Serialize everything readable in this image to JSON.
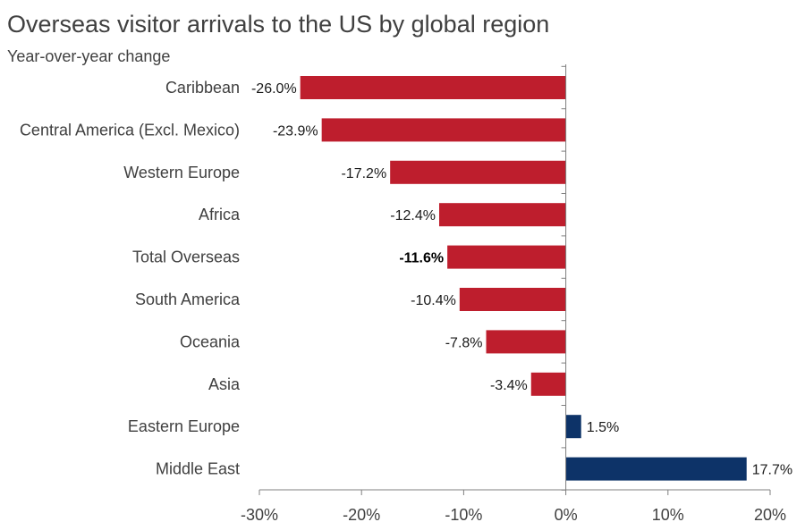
{
  "header": {
    "title": "Overseas visitor arrivals to the US by global region",
    "subtitle": "Year-over-year change"
  },
  "chart_data": {
    "type": "bar",
    "orientation": "horizontal",
    "title": "Overseas visitor arrivals to the US by global region",
    "subtitle": "Year-over-year change",
    "xlabel": "",
    "ylabel": "",
    "xlim": [
      -30,
      20
    ],
    "x_ticks": [
      -30,
      -20,
      -10,
      0,
      10,
      20
    ],
    "x_tick_labels": [
      "-30%",
      "-20%",
      "-10%",
      "0%",
      "10%",
      "20%"
    ],
    "categories": [
      "Caribbean",
      "Central America (Excl. Mexico)",
      "Western Europe",
      "Africa",
      "Total Overseas",
      "South America",
      "Oceania",
      "Asia",
      "Eastern Europe",
      "Middle East"
    ],
    "values": [
      -26.0,
      -23.9,
      -17.2,
      -12.4,
      -11.6,
      -10.4,
      -7.8,
      -3.4,
      1.5,
      17.7
    ],
    "value_labels": [
      "-26.0%",
      "-23.9%",
      "-17.2%",
      "-12.4%",
      "-11.6%",
      "-10.4%",
      "-7.8%",
      "-3.4%",
      "1.5%",
      "17.7%"
    ],
    "emphasized_category": "Total Overseas",
    "colors": {
      "negative": "#be1e2d",
      "positive": "#0d3368",
      "axis": "#808080"
    },
    "grid": false,
    "legend": "none"
  }
}
